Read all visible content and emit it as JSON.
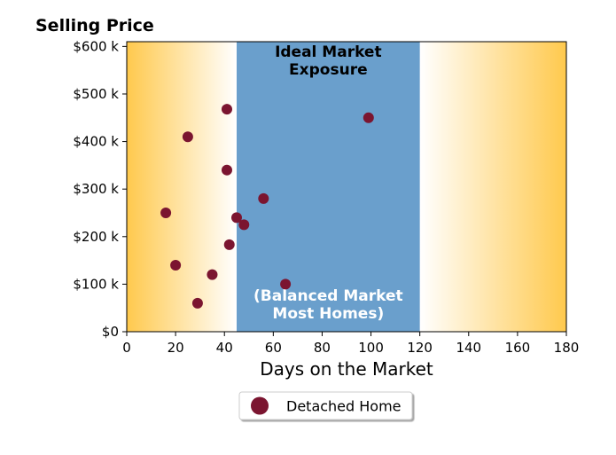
{
  "chart_data": {
    "type": "scatter",
    "title": "",
    "ylabel": "Selling Price",
    "xlabel": "Days on the Market",
    "xlim": [
      0,
      180
    ],
    "ylim": [
      0,
      610000
    ],
    "x_ticks": [
      0,
      20,
      40,
      60,
      80,
      100,
      120,
      140,
      160,
      180
    ],
    "x_tick_labels": [
      "0",
      "20",
      "40",
      "60",
      "80",
      "100",
      "120",
      "140",
      "160",
      "180"
    ],
    "y_ticks": [
      0,
      100000,
      200000,
      300000,
      400000,
      500000,
      600000
    ],
    "y_tick_labels": [
      "$0",
      "$100 k",
      "$200 k",
      "$300 k",
      "$400 k",
      "$500 k",
      "$600 k"
    ],
    "grid": false,
    "legend_position": "bottom-center",
    "ideal_band": {
      "x_range": [
        45,
        120
      ],
      "color": "#6a9fcc",
      "label_top": [
        "Ideal Market",
        "Exposure"
      ],
      "label_bottom": [
        "(Balanced Market",
        "Most Homes)"
      ]
    },
    "side_gradient_color": "#ffc94d",
    "series": [
      {
        "name": "Detached Home",
        "color": "#7b1530",
        "points": [
          {
            "x": 16,
            "y": 250000
          },
          {
            "x": 20,
            "y": 140000
          },
          {
            "x": 25,
            "y": 410000
          },
          {
            "x": 29,
            "y": 60000
          },
          {
            "x": 35,
            "y": 120000
          },
          {
            "x": 41,
            "y": 468000
          },
          {
            "x": 41,
            "y": 340000
          },
          {
            "x": 42,
            "y": 183000
          },
          {
            "x": 45,
            "y": 240000
          },
          {
            "x": 48,
            "y": 225000
          },
          {
            "x": 56,
            "y": 280000
          },
          {
            "x": 65,
            "y": 100000
          },
          {
            "x": 99,
            "y": 450000
          }
        ]
      }
    ]
  }
}
